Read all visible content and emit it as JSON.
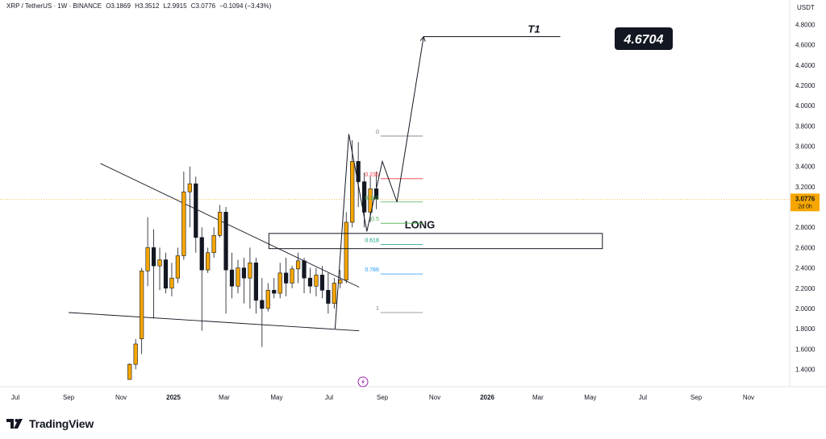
{
  "header": {
    "symbol": "XRP / TetherUS · 1W · BINANCE",
    "open": "O3.1869",
    "high": "H3.3512",
    "low": "L2.9915",
    "close": "C3.0776",
    "change": "−0.1094 (−3.43%)"
  },
  "branding": {
    "logo_text": "TradingView",
    "logo_icon": "tradingview-logo-icon"
  },
  "colors": {
    "up": "#f7a600",
    "down": "#131722",
    "fib_0": "#787b86",
    "fib_236": "#f23645",
    "fib_382": "#4caf50",
    "fib_5": "#4caf50",
    "fib_618": "#089981",
    "fib_786": "#2196f3",
    "fib_1": "#787b86",
    "price_tag": "#f7a600",
    "last_price_line": "#f7a600"
  },
  "chart_data": {
    "type": "candlestick",
    "title": "",
    "currency_label": "USDT",
    "y_ticks": [
      "1.4000",
      "1.6000",
      "1.8000",
      "2.0000",
      "2.2000",
      "2.4000",
      "2.6000",
      "2.8000",
      "3.0000",
      "3.2000",
      "3.4000",
      "3.6000",
      "3.8000",
      "4.0000",
      "4.2000",
      "4.4000",
      "4.6000",
      "4.8000"
    ],
    "x_ticks": [
      "Jul",
      "Sep",
      "Nov",
      "2025",
      "Mar",
      "May",
      "Jul",
      "Sep",
      "Nov",
      "2026",
      "Mar",
      "May",
      "Jul",
      "Sep",
      "Nov"
    ],
    "last_price": "3.0776",
    "countdown": "2d 0h",
    "candles": [
      {
        "o": 1.3,
        "h": 1.46,
        "l": 1.3,
        "c": 1.45
      },
      {
        "o": 1.45,
        "h": 1.7,
        "l": 1.4,
        "c": 1.65
      },
      {
        "o": 1.7,
        "h": 2.4,
        "l": 1.55,
        "c": 2.37
      },
      {
        "o": 2.37,
        "h": 2.9,
        "l": 2.22,
        "c": 2.6
      },
      {
        "o": 2.6,
        "h": 2.78,
        "l": 1.9,
        "c": 2.42
      },
      {
        "o": 2.42,
        "h": 2.6,
        "l": 2.18,
        "c": 2.48
      },
      {
        "o": 2.48,
        "h": 2.55,
        "l": 2.15,
        "c": 2.2
      },
      {
        "o": 2.2,
        "h": 2.45,
        "l": 2.12,
        "c": 2.3
      },
      {
        "o": 2.3,
        "h": 2.6,
        "l": 2.25,
        "c": 2.52
      },
      {
        "o": 2.52,
        "h": 3.35,
        "l": 2.48,
        "c": 3.15
      },
      {
        "o": 3.15,
        "h": 3.4,
        "l": 2.8,
        "c": 3.23
      },
      {
        "o": 3.23,
        "h": 3.3,
        "l": 2.55,
        "c": 2.7
      },
      {
        "o": 2.7,
        "h": 2.8,
        "l": 1.78,
        "c": 2.38
      },
      {
        "o": 2.38,
        "h": 2.6,
        "l": 2.35,
        "c": 2.55
      },
      {
        "o": 2.55,
        "h": 2.8,
        "l": 2.5,
        "c": 2.72
      },
      {
        "o": 2.72,
        "h": 3.02,
        "l": 2.7,
        "c": 2.95
      },
      {
        "o": 2.95,
        "h": 3.0,
        "l": 1.95,
        "c": 2.38
      },
      {
        "o": 2.38,
        "h": 2.55,
        "l": 2.1,
        "c": 2.22
      },
      {
        "o": 2.22,
        "h": 2.48,
        "l": 2.15,
        "c": 2.4
      },
      {
        "o": 2.4,
        "h": 2.5,
        "l": 2.05,
        "c": 2.3
      },
      {
        "o": 2.3,
        "h": 2.6,
        "l": 2.0,
        "c": 2.45
      },
      {
        "o": 2.45,
        "h": 2.5,
        "l": 1.95,
        "c": 2.08
      },
      {
        "o": 2.08,
        "h": 2.3,
        "l": 1.62,
        "c": 2.0
      },
      {
        "o": 2.0,
        "h": 2.25,
        "l": 1.97,
        "c": 2.18
      },
      {
        "o": 2.18,
        "h": 2.3,
        "l": 2.1,
        "c": 2.15
      },
      {
        "o": 2.15,
        "h": 2.45,
        "l": 2.1,
        "c": 2.35
      },
      {
        "o": 2.35,
        "h": 2.5,
        "l": 2.12,
        "c": 2.25
      },
      {
        "o": 2.25,
        "h": 2.42,
        "l": 2.2,
        "c": 2.39
      },
      {
        "o": 2.39,
        "h": 2.55,
        "l": 2.25,
        "c": 2.47
      },
      {
        "o": 2.47,
        "h": 2.5,
        "l": 2.15,
        "c": 2.3
      },
      {
        "o": 2.3,
        "h": 2.4,
        "l": 2.15,
        "c": 2.22
      },
      {
        "o": 2.22,
        "h": 2.4,
        "l": 2.12,
        "c": 2.33
      },
      {
        "o": 2.33,
        "h": 2.42,
        "l": 2.1,
        "c": 2.18
      },
      {
        "o": 2.18,
        "h": 2.35,
        "l": 1.95,
        "c": 2.05
      },
      {
        "o": 2.05,
        "h": 2.3,
        "l": 2.0,
        "c": 2.25
      },
      {
        "o": 2.25,
        "h": 2.38,
        "l": 2.2,
        "c": 2.28
      },
      {
        "o": 2.28,
        "h": 2.95,
        "l": 2.25,
        "c": 2.85
      },
      {
        "o": 2.85,
        "h": 3.66,
        "l": 2.8,
        "c": 3.45
      },
      {
        "o": 3.45,
        "h": 3.64,
        "l": 3.0,
        "c": 3.25
      },
      {
        "o": 3.25,
        "h": 3.34,
        "l": 2.8,
        "c": 2.95
      },
      {
        "o": 2.95,
        "h": 3.3,
        "l": 2.85,
        "c": 3.18
      },
      {
        "o": 3.18,
        "h": 3.35,
        "l": 2.98,
        "c": 3.08
      }
    ],
    "trendlines": [
      {
        "name": "descending-resistance",
        "x1": "2024-10-08",
        "y1": 3.43,
        "x2": "2025-08-05",
        "y2": 2.21
      },
      {
        "name": "support-line",
        "x1": "2024-09-01",
        "y1": 1.96,
        "x2": "2025-08-05",
        "y2": 1.78
      }
    ],
    "long_zone": {
      "label": "LONG",
      "top": 2.74,
      "bottom": 2.59
    },
    "fib_levels": [
      {
        "label": "0",
        "value": 3.7
      },
      {
        "label": "0.236",
        "value": 3.28
      },
      {
        "label": "0.382",
        "value": 3.05
      },
      {
        "label": "0.5",
        "value": 2.84
      },
      {
        "label": "0.618",
        "value": 2.63
      },
      {
        "label": "0.786",
        "value": 2.34
      },
      {
        "label": "1",
        "value": 1.96
      }
    ],
    "projection_path": [
      {
        "x": "2025-07-08",
        "y": 1.8
      },
      {
        "x": "2025-07-24",
        "y": 3.72
      },
      {
        "x": "2025-08-14",
        "y": 2.76
      },
      {
        "x": "2025-09-01",
        "y": 3.45
      },
      {
        "x": "2025-09-18",
        "y": 3.05
      },
      {
        "x": "2025-10-19",
        "y": 4.68
      }
    ],
    "target": {
      "label": "T1",
      "value_label": "4.6704"
    }
  }
}
